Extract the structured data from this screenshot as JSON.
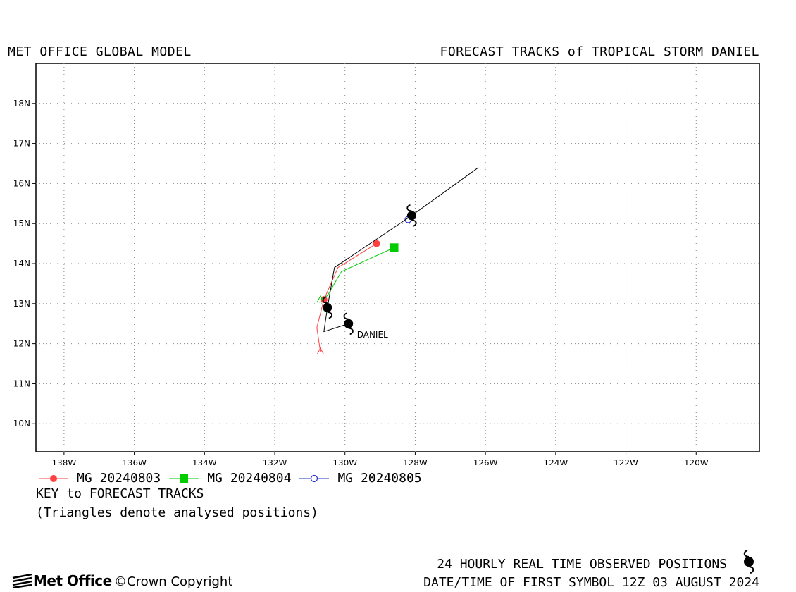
{
  "header": {
    "left_title": "MET OFFICE GLOBAL MODEL",
    "right_title": "FORECAST TRACKS of TROPICAL STORM DANIEL"
  },
  "map": {
    "lon_range_west": [
      138.8,
      118.2
    ],
    "lat_range": [
      9.3,
      19.0
    ],
    "lon_ticks": [
      "138W",
      "136W",
      "134W",
      "132W",
      "130W",
      "128W",
      "126W",
      "124W",
      "122W",
      "120W"
    ],
    "lat_ticks": [
      "10N",
      "11N",
      "12N",
      "13N",
      "14N",
      "15N",
      "16N",
      "17N",
      "18N"
    ],
    "grid": "dotted",
    "storm_label": "DANIEL"
  },
  "chart_data": {
    "type": "line",
    "x_axis": "longitude (degrees W)",
    "y_axis": "latitude (degrees N)",
    "series": [
      {
        "name": "MG 20240803",
        "color": "#ff4040",
        "marker": "circle",
        "points": [
          [
            130.7,
            11.8
          ],
          [
            130.8,
            12.4
          ],
          [
            130.6,
            13.1
          ],
          [
            130.2,
            13.9
          ],
          [
            129.1,
            14.5
          ]
        ],
        "symbols": [
          [
            130.6,
            13.1
          ],
          [
            129.1,
            14.5
          ]
        ]
      },
      {
        "name": "MG 20240804",
        "color": "#00cc00",
        "marker": "square",
        "points": [
          [
            130.7,
            13.1
          ],
          [
            130.5,
            13.2
          ],
          [
            130.3,
            13.5
          ],
          [
            130.1,
            13.8
          ],
          [
            128.6,
            14.4
          ]
        ],
        "symbols": [
          [
            128.6,
            14.4
          ]
        ]
      },
      {
        "name": "MG 20240805",
        "color": "#2030c0",
        "marker": "open-circle",
        "points": [
          [
            128.2,
            15.1
          ]
        ],
        "symbols": [
          [
            128.2,
            15.1
          ]
        ]
      }
    ],
    "observed_track": {
      "color": "#000000",
      "points": [
        [
          129.9,
          12.5
        ],
        [
          130.6,
          12.3
        ],
        [
          130.5,
          12.9
        ],
        [
          130.3,
          13.9
        ],
        [
          128.1,
          15.2
        ],
        [
          126.2,
          16.4
        ]
      ],
      "storm_symbols": [
        [
          129.9,
          12.5
        ],
        [
          130.5,
          12.9
        ],
        [
          128.1,
          15.2
        ]
      ]
    }
  },
  "legend": {
    "items": [
      {
        "label": "MG 20240803",
        "color": "#ff4040",
        "marker": "circle"
      },
      {
        "label": "MG 20240804",
        "color": "#00cc00",
        "marker": "square"
      },
      {
        "label": "MG 20240805",
        "color": "#2030c0",
        "marker": "open-circle"
      }
    ],
    "key_title": "KEY to FORECAST TRACKS",
    "key_note": "(Triangles denote analysed positions)"
  },
  "footer": {
    "observed_note": "24 HOURLY REAL TIME OBSERVED POSITIONS",
    "first_symbol": "DATE/TIME OF FIRST SYMBOL 12Z 03 AUGUST 2024",
    "logo_text": "Met Office",
    "copyright": "©Crown Copyright"
  }
}
